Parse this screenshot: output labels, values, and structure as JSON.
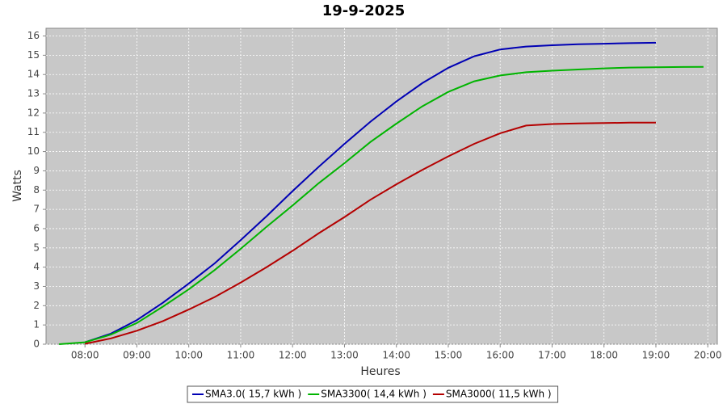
{
  "chart_data": {
    "type": "line",
    "title": "19-9-2025",
    "x_label": "Heures",
    "y_label": "Watts",
    "x": [
      "07:30",
      "08:00",
      "08:30",
      "09:00",
      "09:30",
      "10:00",
      "10:30",
      "11:00",
      "11:30",
      "12:00",
      "12:30",
      "13:00",
      "13:30",
      "14:00",
      "14:30",
      "15:00",
      "15:30",
      "16:00",
      "16:30",
      "17:00",
      "17:30",
      "18:00",
      "18:30",
      "19:00",
      "19:30",
      "19:55"
    ],
    "series": [
      {
        "name": "SMA3.0( 15,7 kWh )",
        "color": "#0000b4",
        "values": [
          null,
          0.1,
          0.55,
          1.25,
          2.15,
          3.15,
          4.2,
          5.4,
          6.65,
          7.95,
          9.2,
          10.4,
          11.55,
          12.6,
          13.55,
          14.35,
          14.95,
          15.3,
          15.45,
          15.52,
          15.57,
          15.6,
          15.63,
          15.65,
          null,
          null
        ]
      },
      {
        "name": "SMA3300( 14,4 kWh )",
        "color": "#00b400",
        "values": [
          0,
          0.1,
          0.5,
          1.1,
          1.95,
          2.85,
          3.85,
          4.95,
          6.1,
          7.2,
          8.35,
          9.4,
          10.5,
          11.45,
          12.35,
          13.1,
          13.65,
          13.95,
          14.12,
          14.2,
          14.26,
          14.32,
          14.36,
          14.38,
          14.39,
          14.4
        ]
      },
      {
        "name": "SMA3000( 11,5 kWh )",
        "color": "#b40000",
        "values": [
          null,
          0.02,
          0.3,
          0.7,
          1.2,
          1.8,
          2.45,
          3.2,
          4.0,
          4.85,
          5.75,
          6.6,
          7.5,
          8.3,
          9.05,
          9.75,
          10.4,
          10.95,
          11.35,
          11.43,
          11.46,
          11.48,
          11.5,
          11.5,
          null,
          null
        ]
      }
    ],
    "xlim": [
      "07:15",
      "20:11"
    ],
    "xticks": [
      "08:00",
      "09:00",
      "10:00",
      "11:00",
      "12:00",
      "13:00",
      "14:00",
      "15:00",
      "16:00",
      "17:00",
      "18:00",
      "19:00",
      "20:00"
    ],
    "ylim": [
      0,
      16.4
    ],
    "yticks": [
      0,
      1,
      2,
      3,
      4,
      5,
      6,
      7,
      8,
      9,
      10,
      11,
      12,
      13,
      14,
      15,
      16
    ],
    "grid": true,
    "legend": "bottom"
  }
}
